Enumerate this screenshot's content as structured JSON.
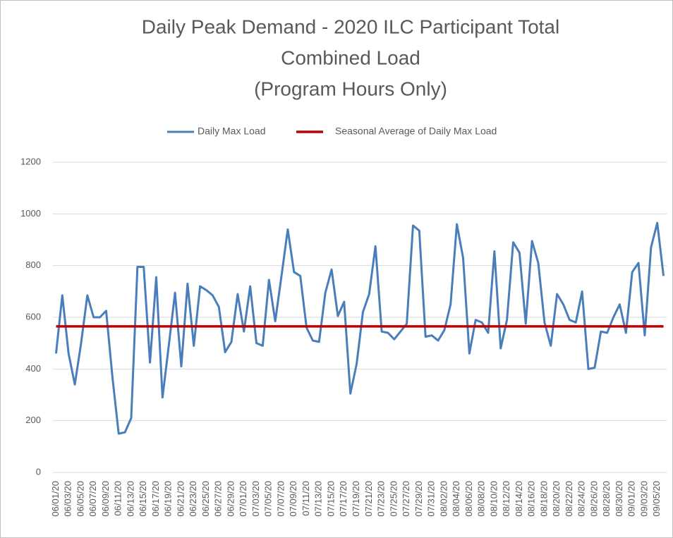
{
  "chart_data": {
    "type": "line",
    "title": [
      "Daily Peak Demand - 2020 ILC Participant Total",
      "Combined Load",
      "(Program Hours Only)"
    ],
    "categories": [
      "06/01/20",
      null,
      "06/03/20",
      null,
      "06/05/20",
      null,
      "06/07/20",
      null,
      "06/09/20",
      null,
      "06/11/20",
      null,
      "06/13/20",
      null,
      "06/15/20",
      null,
      "06/17/20",
      null,
      "06/19/20",
      null,
      "06/21/20",
      null,
      "06/23/20",
      null,
      "06/25/20",
      null,
      "06/27/20",
      null,
      "06/29/20",
      null,
      "07/01/20",
      null,
      "07/03/20",
      null,
      "07/05/20",
      null,
      "07/07/20",
      null,
      "07/09/20",
      null,
      "07/11/20",
      null,
      "07/13/20",
      null,
      "07/15/20",
      null,
      "07/17/20",
      null,
      "07/19/20",
      null,
      "07/21/20",
      null,
      "07/23/20",
      null,
      "07/25/20",
      null,
      "07/27/20",
      null,
      "07/29/20",
      null,
      "07/31/20",
      null,
      "08/02/20",
      null,
      "08/04/20",
      null,
      "08/06/20",
      null,
      "08/08/20",
      null,
      "08/10/20",
      null,
      "08/12/20",
      null,
      "08/14/20",
      null,
      "08/16/20",
      null,
      "08/18/20",
      null,
      "08/20/20",
      null,
      "08/22/20",
      null,
      "08/24/20",
      null,
      "08/26/20",
      null,
      "08/28/20",
      null,
      "08/30/20",
      null,
      "09/01/20",
      null,
      "09/03/20",
      null,
      "09/05/20",
      null
    ],
    "series": [
      {
        "name": "Daily Max Load",
        "color": "#4a7ebb",
        "values": [
          460,
          685,
          460,
          340,
          500,
          685,
          600,
          600,
          625,
          370,
          150,
          155,
          210,
          795,
          795,
          425,
          755,
          290,
          490,
          695,
          410,
          730,
          490,
          720,
          705,
          685,
          640,
          465,
          505,
          690,
          545,
          720,
          500,
          490,
          745,
          585,
          760,
          940,
          775,
          760,
          560,
          510,
          505,
          695,
          785,
          605,
          660,
          305,
          420,
          620,
          690,
          875,
          545,
          540,
          515,
          545,
          575,
          955,
          935,
          525,
          530,
          510,
          550,
          650,
          960,
          830,
          460,
          590,
          580,
          540,
          855,
          480,
          590,
          890,
          850,
          575,
          895,
          810,
          580,
          490,
          690,
          650,
          590,
          580,
          700,
          400,
          405,
          545,
          540,
          600,
          650,
          540,
          775,
          810,
          530,
          870,
          965,
          760
        ]
      },
      {
        "name": "Seasonal Average of Daily Max Load",
        "color": "#c00000",
        "values": [
          565,
          565,
          565,
          565,
          565,
          565,
          565,
          565,
          565,
          565,
          565,
          565,
          565,
          565,
          565,
          565,
          565,
          565,
          565,
          565,
          565,
          565,
          565,
          565,
          565,
          565,
          565,
          565,
          565,
          565,
          565,
          565,
          565,
          565,
          565,
          565,
          565,
          565,
          565,
          565,
          565,
          565,
          565,
          565,
          565,
          565,
          565,
          565,
          565,
          565,
          565,
          565,
          565,
          565,
          565,
          565,
          565,
          565,
          565,
          565,
          565,
          565,
          565,
          565,
          565,
          565,
          565,
          565,
          565,
          565,
          565,
          565,
          565,
          565,
          565,
          565,
          565,
          565,
          565,
          565,
          565,
          565,
          565,
          565,
          565,
          565,
          565,
          565,
          565,
          565,
          565,
          565,
          565,
          565,
          565,
          565,
          565,
          565
        ]
      }
    ],
    "ylim": [
      0,
      1200
    ],
    "yticks": [
      0,
      200,
      400,
      600,
      800,
      1000,
      1200
    ],
    "grid": true,
    "legend": "top"
  }
}
